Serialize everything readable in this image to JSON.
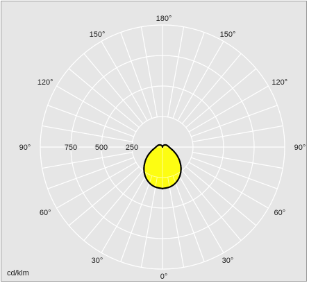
{
  "chart_data": {
    "type": "polar-luminous-intensity",
    "units_label": "cd/klm",
    "radial_ticks": [
      250,
      500,
      750
    ],
    "radial_max": 1000,
    "angle_labels": [
      {
        "text": "180°",
        "angle": 180,
        "side": "center"
      },
      {
        "text": "150°",
        "angle": 150,
        "side": "left"
      },
      {
        "text": "150°",
        "angle": 150,
        "side": "right"
      },
      {
        "text": "120°",
        "angle": 120,
        "side": "left"
      },
      {
        "text": "120°",
        "angle": 120,
        "side": "right"
      },
      {
        "text": "90°",
        "angle": 90,
        "side": "left"
      },
      {
        "text": "90°",
        "angle": 90,
        "side": "right"
      },
      {
        "text": "60°",
        "angle": 60,
        "side": "left"
      },
      {
        "text": "60°",
        "angle": 60,
        "side": "right"
      },
      {
        "text": "30°",
        "angle": 30,
        "side": "left"
      },
      {
        "text": "30°",
        "angle": 30,
        "side": "right"
      },
      {
        "text": "0°",
        "angle": 0,
        "side": "center"
      }
    ],
    "grid": true,
    "fill_color": "#ffff00",
    "outline_color": "#000000",
    "series": [
      {
        "gamma": [
          0,
          10,
          20,
          30,
          40,
          50,
          60,
          70,
          80,
          90,
          100,
          110,
          120,
          130,
          140,
          150,
          160,
          170,
          180
        ],
        "intensity": [
          340,
          333,
          313,
          280,
          236,
          186,
          138,
          97,
          69,
          54,
          46,
          40,
          34,
          28,
          22,
          15,
          9,
          4,
          0
        ]
      }
    ]
  }
}
